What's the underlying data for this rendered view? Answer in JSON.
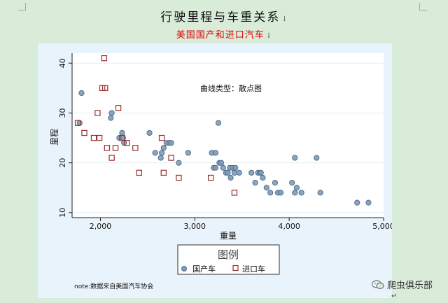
{
  "document": {
    "title": "行驶里程与车重关系",
    "subtitle": "美国国产和进口汽车",
    "paragraph_mark": "↓",
    "watermark": "爬虫俱乐部",
    "trailing_mark": "↵"
  },
  "chart_data": {
    "type": "scatter",
    "annotation": "曲线类型：散点图",
    "xlabel": "重量",
    "ylabel": "里程",
    "xlim": [
      1700,
      5000
    ],
    "ylim": [
      9,
      42
    ],
    "xticks": [
      2000,
      3000,
      4000,
      5000
    ],
    "xtick_labels": [
      "2,000",
      "3,000",
      "4,000",
      "5,000"
    ],
    "yticks": [
      10,
      20,
      30,
      40
    ],
    "ytick_labels": [
      "10",
      "20",
      "30",
      "40"
    ],
    "grid": true,
    "legend": {
      "title": "图例",
      "placement": "bottom"
    },
    "note": "note:数据来自美国汽车协会",
    "series": [
      {
        "name": "国产车",
        "marker": "circle",
        "color": "#4f6f91",
        "fill": "#7f9bb5",
        "points": [
          [
            1800,
            34
          ],
          [
            1780,
            28
          ],
          [
            2110,
            29
          ],
          [
            2120,
            30
          ],
          [
            2200,
            25
          ],
          [
            2230,
            26
          ],
          [
            2240,
            25
          ],
          [
            2250,
            24
          ],
          [
            2520,
            26
          ],
          [
            2580,
            22
          ],
          [
            2640,
            21
          ],
          [
            2650,
            22
          ],
          [
            2670,
            23
          ],
          [
            2700,
            24
          ],
          [
            2730,
            24
          ],
          [
            2750,
            24
          ],
          [
            2830,
            20
          ],
          [
            2930,
            22
          ],
          [
            3180,
            22
          ],
          [
            3220,
            22
          ],
          [
            3250,
            28
          ],
          [
            3200,
            19
          ],
          [
            3220,
            19
          ],
          [
            3260,
            20
          ],
          [
            3280,
            20
          ],
          [
            3300,
            19
          ],
          [
            3330,
            18
          ],
          [
            3350,
            18
          ],
          [
            3370,
            19
          ],
          [
            3380,
            17
          ],
          [
            3400,
            19
          ],
          [
            3420,
            18
          ],
          [
            3430,
            19
          ],
          [
            3470,
            18
          ],
          [
            3600,
            18
          ],
          [
            3640,
            16
          ],
          [
            3670,
            18
          ],
          [
            3690,
            18
          ],
          [
            3700,
            18
          ],
          [
            3720,
            17
          ],
          [
            3760,
            15
          ],
          [
            3800,
            14
          ],
          [
            3850,
            16
          ],
          [
            3880,
            14
          ],
          [
            3910,
            14
          ],
          [
            4030,
            16
          ],
          [
            4060,
            14
          ],
          [
            4080,
            15
          ],
          [
            4060,
            21
          ],
          [
            4130,
            14
          ],
          [
            4290,
            21
          ],
          [
            4330,
            14
          ],
          [
            4720,
            12
          ],
          [
            4840,
            12
          ]
        ]
      },
      {
        "name": "进口车",
        "marker": "square",
        "color": "#9b2e2e",
        "fill": "#ffffff",
        "points": [
          [
            1760,
            28
          ],
          [
            1830,
            26
          ],
          [
            1930,
            25
          ],
          [
            1990,
            25
          ],
          [
            1970,
            30
          ],
          [
            2020,
            35
          ],
          [
            2050,
            35
          ],
          [
            2040,
            41
          ],
          [
            2070,
            23
          ],
          [
            2120,
            21
          ],
          [
            2160,
            23
          ],
          [
            2190,
            31
          ],
          [
            2230,
            25
          ],
          [
            2280,
            24
          ],
          [
            2370,
            23
          ],
          [
            2410,
            18
          ],
          [
            2650,
            25
          ],
          [
            2670,
            18
          ],
          [
            2750,
            21
          ],
          [
            2830,
            17
          ],
          [
            3170,
            17
          ],
          [
            3420,
            14
          ]
        ]
      }
    ]
  }
}
